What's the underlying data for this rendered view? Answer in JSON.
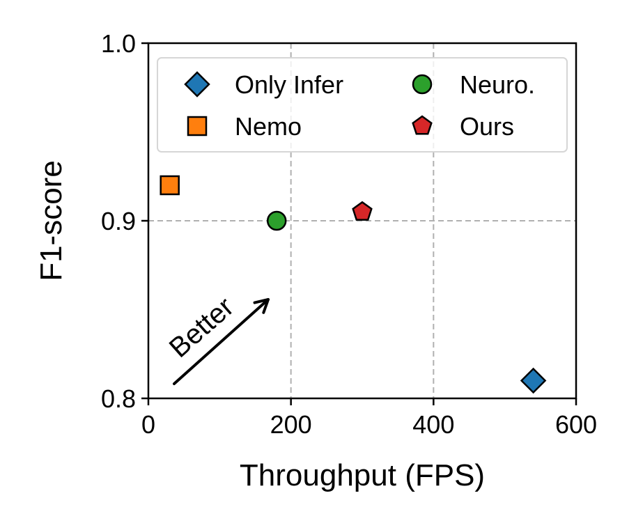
{
  "chart_data": {
    "type": "scatter",
    "xlabel": "Throughput (FPS)",
    "ylabel": "F1-score",
    "xlim": [
      0,
      600
    ],
    "ylim": [
      0.8,
      1.0
    ],
    "xticks": [
      0,
      200,
      400,
      600
    ],
    "xtick_labels": [
      "0",
      "200",
      "400",
      "600"
    ],
    "yticks": [
      0.8,
      0.9,
      1.0
    ],
    "ytick_labels": [
      "0.8",
      "0.9",
      "1.0"
    ],
    "grid": true,
    "legend_position": "top-right",
    "series": [
      {
        "name": "Only Infer",
        "marker": "diamond",
        "color": "#1f77b4",
        "x": 540,
        "y": 0.81
      },
      {
        "name": "Nemo",
        "marker": "square",
        "color": "#ff7f0e",
        "x": 30,
        "y": 0.92
      },
      {
        "name": "Neuro.",
        "marker": "circle",
        "color": "#2ca02c",
        "x": 180,
        "y": 0.9
      },
      {
        "name": "Ours",
        "marker": "pentagon",
        "color": "#d62728",
        "x": 300,
        "y": 0.905
      }
    ],
    "annotation": {
      "text": "Better",
      "direction": "up-right"
    }
  }
}
